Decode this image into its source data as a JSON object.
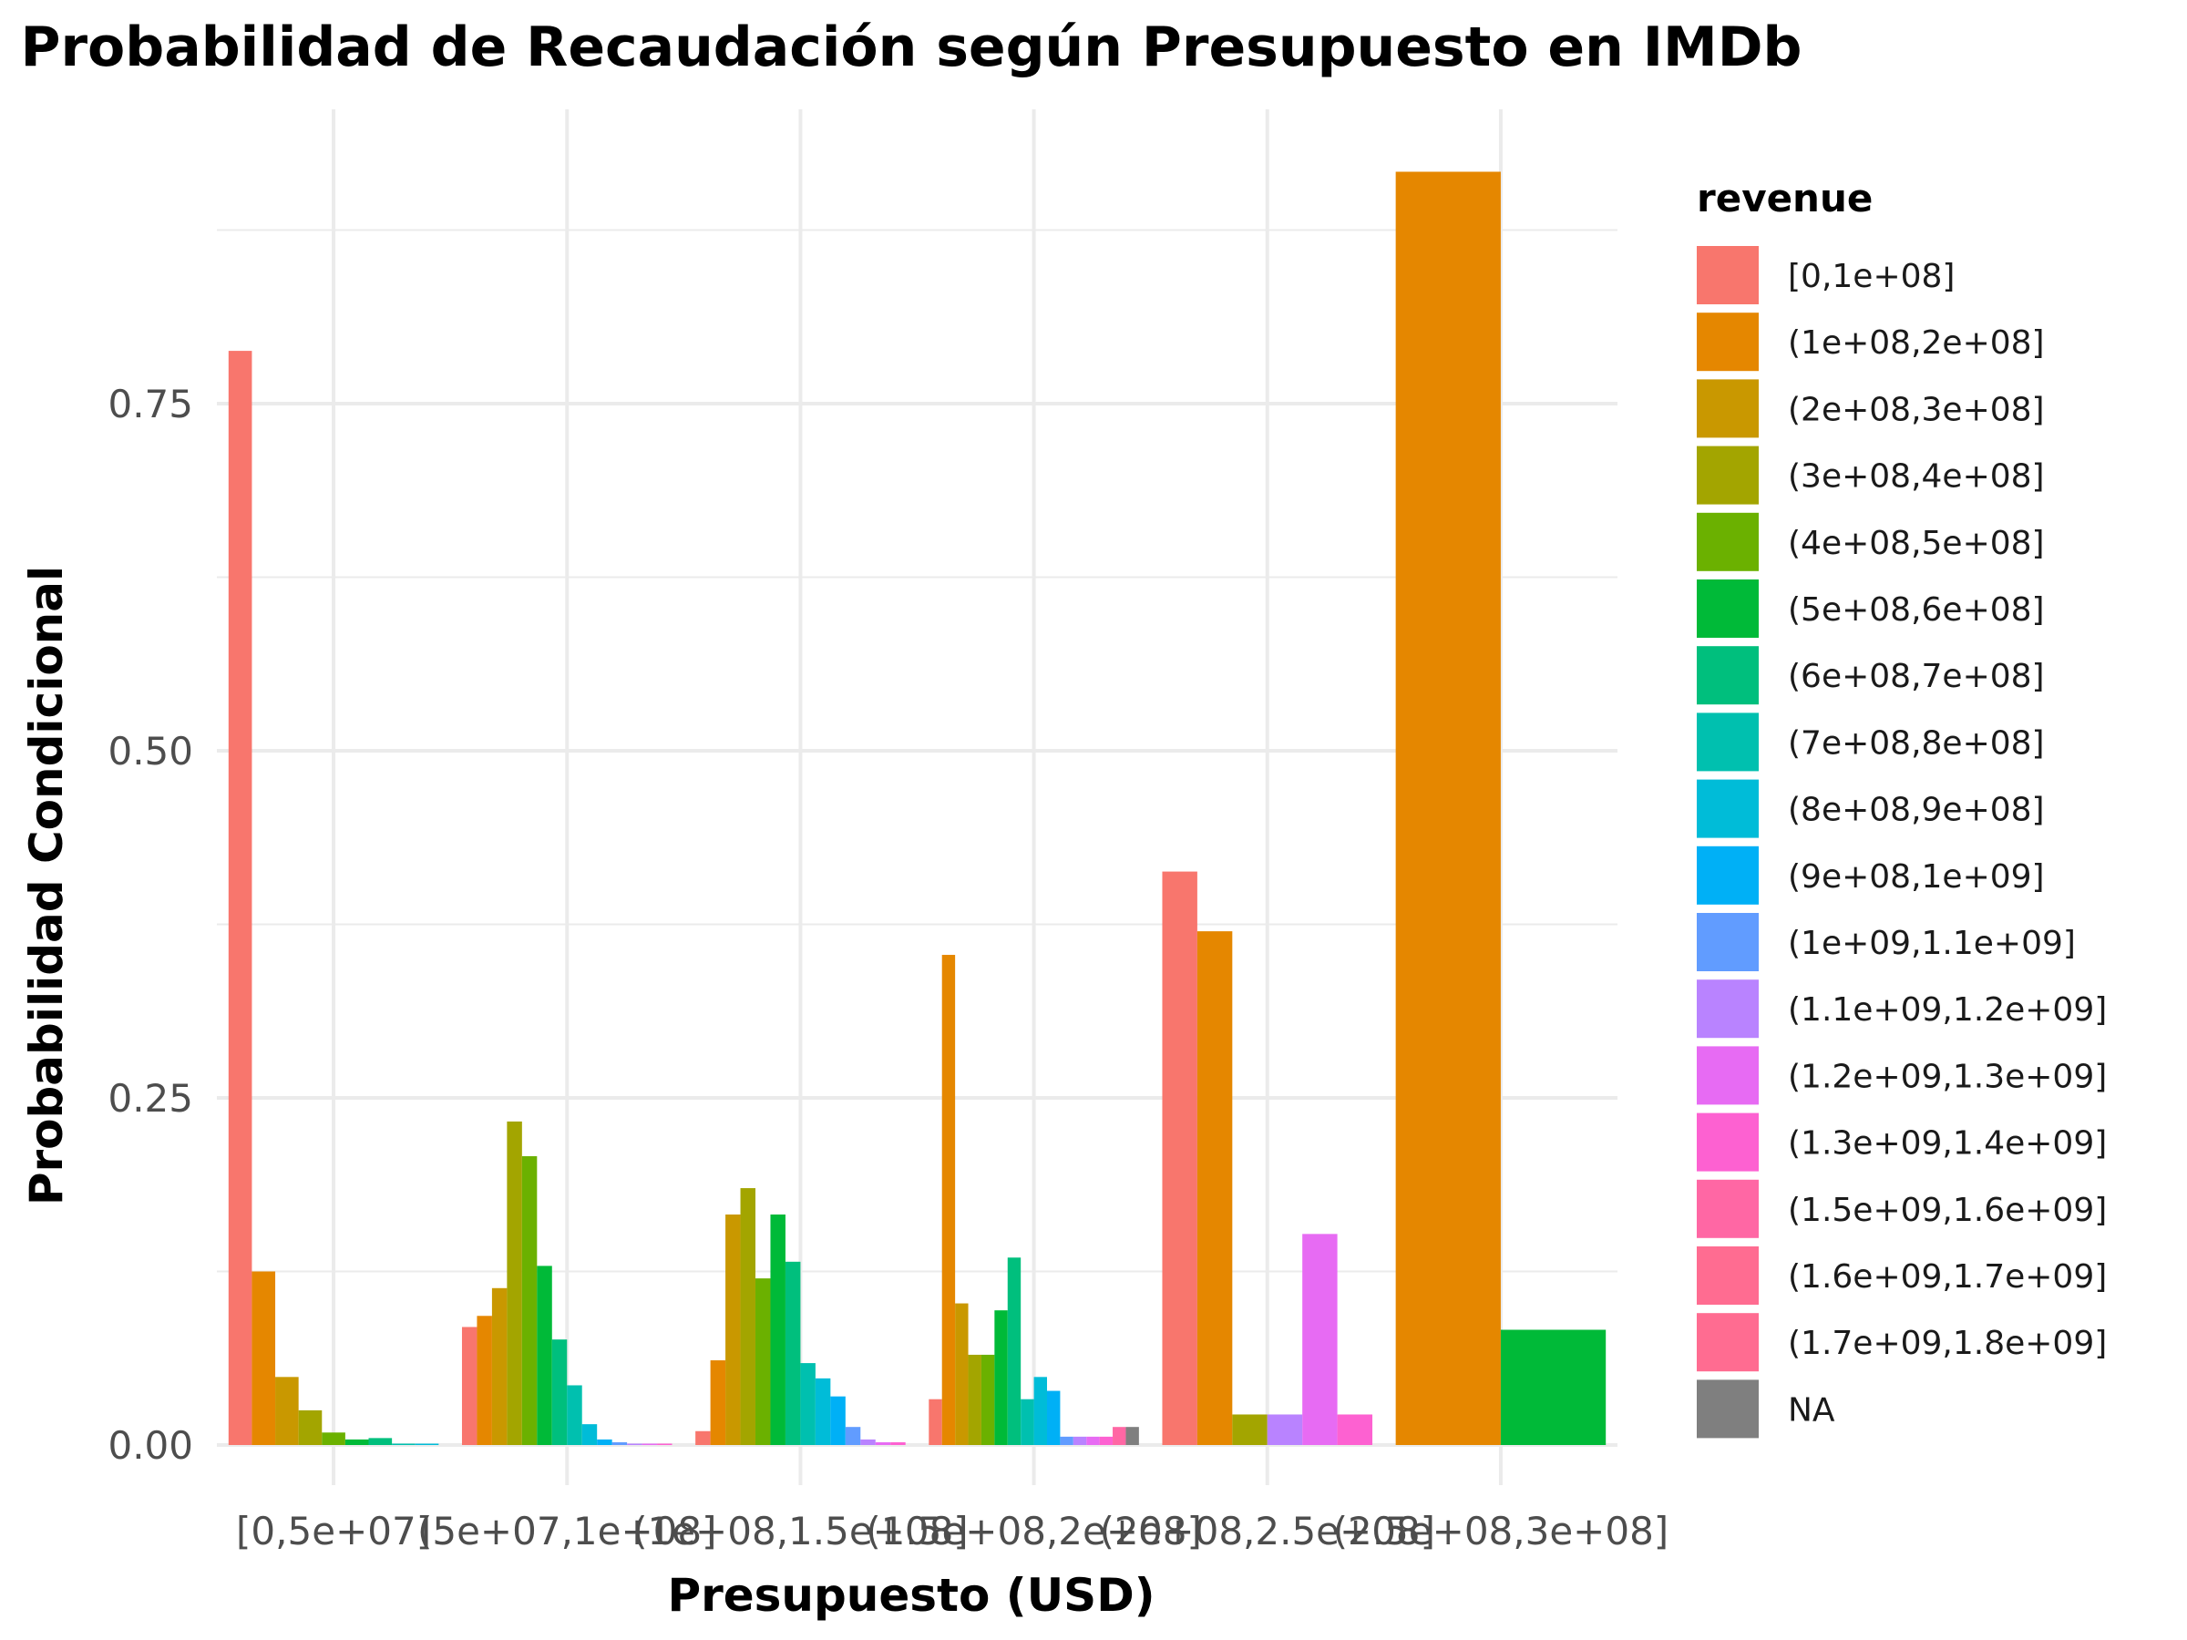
{
  "chart_data": {
    "type": "bar",
    "title": "Probabilidad de Recaudación según Presupuesto en IMDb",
    "xlabel": "Presupuesto (USD)",
    "ylabel": "Probabilidad Condicional",
    "ylim": [
      -0.02,
      0.96
    ],
    "yticks": [
      "0.00",
      "0.25",
      "0.50",
      "0.75"
    ],
    "grid": true,
    "legend_position": "right",
    "legend_title": "revenue",
    "categories": [
      "[0,5e+07]",
      "(5e+07,1e+08]",
      "(1e+08,1.5e+08]",
      "(1.5e+08,2e+08]",
      "(2e+08,2.5e+08]",
      "(2.5e+08,3e+08]"
    ],
    "series": [
      {
        "name": "[0,1e+08]",
        "color": "#F8766D",
        "values": [
          0.788,
          0.085,
          0.01,
          0.033,
          0.413,
          null
        ]
      },
      {
        "name": "(1e+08,2e+08]",
        "color": "#E58700",
        "values": [
          0.125,
          0.093,
          0.061,
          0.353,
          0.37,
          0.917
        ]
      },
      {
        "name": "(2e+08,3e+08]",
        "color": "#C99800",
        "values": [
          0.049,
          0.113,
          0.166,
          0.102,
          null,
          null
        ]
      },
      {
        "name": "(3e+08,4e+08]",
        "color": "#A3A500",
        "values": [
          0.025,
          0.233,
          0.185,
          0.065,
          0.022,
          null
        ]
      },
      {
        "name": "(4e+08,5e+08]",
        "color": "#6BB100",
        "values": [
          0.009,
          0.208,
          0.12,
          0.065,
          null,
          null
        ]
      },
      {
        "name": "(5e+08,6e+08]",
        "color": "#00BA38",
        "values": [
          0.004,
          0.129,
          0.166,
          0.097,
          null,
          0.083
        ]
      },
      {
        "name": "(6e+08,7e+08]",
        "color": "#00BF7D",
        "values": [
          0.005,
          0.076,
          0.132,
          0.135,
          null,
          null
        ]
      },
      {
        "name": "(7e+08,8e+08]",
        "color": "#00C0AF",
        "values": [
          0.001,
          0.043,
          0.059,
          0.033,
          null,
          null
        ]
      },
      {
        "name": "(8e+08,9e+08]",
        "color": "#00BCD8",
        "values": [
          0.0005,
          0.015,
          0.048,
          0.049,
          null,
          null
        ]
      },
      {
        "name": "(9e+08,1e+09]",
        "color": "#00B0F6",
        "values": [
          null,
          0.004,
          0.035,
          0.039,
          null,
          null
        ]
      },
      {
        "name": "(1e+09,1.1e+09]",
        "color": "#619CFF",
        "values": [
          null,
          0.002,
          0.013,
          0.006,
          null,
          null
        ]
      },
      {
        "name": "(1.1e+09,1.2e+09]",
        "color": "#B983FF",
        "values": [
          null,
          0.001,
          0.004,
          0.006,
          0.022,
          null
        ]
      },
      {
        "name": "(1.2e+09,1.3e+09]",
        "color": "#E76BF3",
        "values": [
          null,
          0.001,
          0.002,
          0.006,
          0.152,
          null
        ]
      },
      {
        "name": "(1.3e+09,1.4e+09]",
        "color": "#FD61D1",
        "values": [
          null,
          0.001,
          0.002,
          0.006,
          0.022,
          null
        ]
      },
      {
        "name": "(1.5e+09,1.6e+09]",
        "color": "#FF67A4",
        "values": [
          null,
          null,
          null,
          0.013,
          null,
          null
        ]
      },
      {
        "name": "(1.6e+09,1.7e+09]",
        "color": "#FF6C91",
        "values": [
          null,
          null,
          null,
          null,
          null,
          null
        ]
      },
      {
        "name": "(1.7e+09,1.8e+09]",
        "color": "#FF6C91",
        "values": [
          null,
          null,
          null,
          null,
          null,
          null
        ]
      },
      {
        "name": "NA",
        "color": "#7F7F7F",
        "values": [
          null,
          null,
          null,
          0.013,
          null,
          null
        ]
      }
    ]
  },
  "legend_colors": [
    "#F8766D",
    "#E58700",
    "#C99800",
    "#A3A500",
    "#6BB100",
    "#00BA38",
    "#00BF7D",
    "#00C0AF",
    "#00BCD8",
    "#00B0F6",
    "#619CFF",
    "#B983FF",
    "#E76BF3",
    "#FD61D1",
    "#FF67A4",
    "#FF6C91",
    "#FF6C91",
    "#7F7F7F"
  ]
}
